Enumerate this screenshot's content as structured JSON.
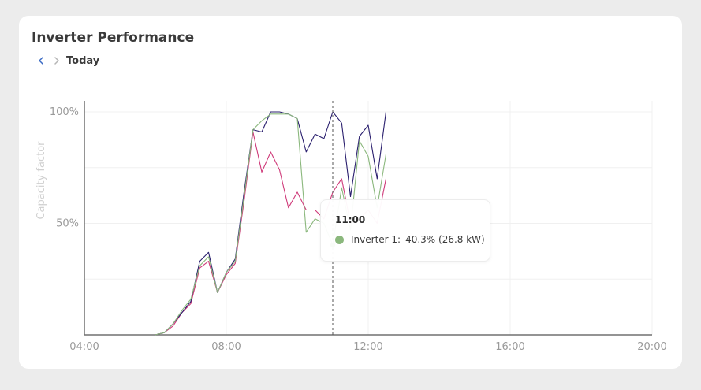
{
  "header": {
    "title": "Inverter Performance"
  },
  "date_nav": {
    "label": "Today",
    "prev_icon": "chevron-left-icon",
    "next_icon": "chevron-right-icon"
  },
  "colors": {
    "inverter_1": "#8bb87d",
    "dark_series": "#2a1f6e",
    "pink_series": "#cf3b7a",
    "hover_point": "#4f9a3f"
  },
  "tooltip": {
    "time": "11:00",
    "series_label": "Inverter 1:",
    "value_text": "40.3% (26.8 kW)"
  },
  "chart_data": {
    "type": "line",
    "ylabel": "Capacity factor",
    "x_ticks": [
      "04:00",
      "08:00",
      "12:00",
      "16:00",
      "20:00"
    ],
    "y_ticks": [
      "50%",
      "100%"
    ],
    "xlim": [
      "04:00",
      "20:00"
    ],
    "ylim": [
      0,
      100
    ],
    "grid": true,
    "hover_time": "11:00",
    "series": [
      {
        "color": "#8bb87d",
        "x": [
          "06:00",
          "06:15",
          "06:30",
          "06:45",
          "07:00",
          "07:15",
          "07:30",
          "07:45",
          "08:00",
          "08:15",
          "08:30",
          "08:45",
          "09:00",
          "09:15",
          "09:30",
          "09:45",
          "10:00",
          "10:15",
          "10:30",
          "10:45",
          "11:00",
          "11:15",
          "11:30",
          "11:45",
          "12:00",
          "12:15",
          "12:30"
        ],
        "values": [
          0,
          1,
          5,
          11,
          16,
          31,
          35,
          19,
          28,
          33,
          62,
          92,
          96,
          99,
          99,
          99,
          97,
          46,
          52,
          50,
          40.3,
          66,
          47,
          87,
          80,
          57,
          81
        ]
      },
      {
        "color": "#2a1f6e",
        "x": [
          "06:00",
          "06:15",
          "06:30",
          "06:45",
          "07:00",
          "07:15",
          "07:30",
          "07:45",
          "08:00",
          "08:15",
          "08:30",
          "08:45",
          "09:00",
          "09:15",
          "09:30",
          "09:45",
          "10:00",
          "10:15",
          "10:30",
          "10:45",
          "11:00",
          "11:15",
          "11:30",
          "11:45",
          "12:00",
          "12:15",
          "12:30"
        ],
        "values": [
          0,
          1,
          5,
          10,
          15,
          33,
          37,
          19,
          28,
          34,
          64,
          92,
          91,
          100,
          100,
          99,
          97,
          82,
          90,
          88,
          100,
          95,
          62,
          89,
          94,
          70,
          100
        ]
      },
      {
        "color": "#cf3b7a",
        "x": [
          "06:00",
          "06:15",
          "06:30",
          "06:45",
          "07:00",
          "07:15",
          "07:30",
          "07:45",
          "08:00",
          "08:15",
          "08:30",
          "08:45",
          "09:00",
          "09:15",
          "09:30",
          "09:45",
          "10:00",
          "10:15",
          "10:30",
          "10:45",
          "11:00",
          "11:15",
          "11:30",
          "11:45",
          "12:00",
          "12:15",
          "12:30"
        ],
        "values": [
          0,
          1,
          4,
          10,
          14,
          30,
          33,
          19,
          27,
          32,
          60,
          91,
          73,
          82,
          74,
          57,
          64,
          56,
          56,
          52,
          64,
          70,
          50,
          52,
          56,
          50,
          70
        ]
      }
    ]
  }
}
